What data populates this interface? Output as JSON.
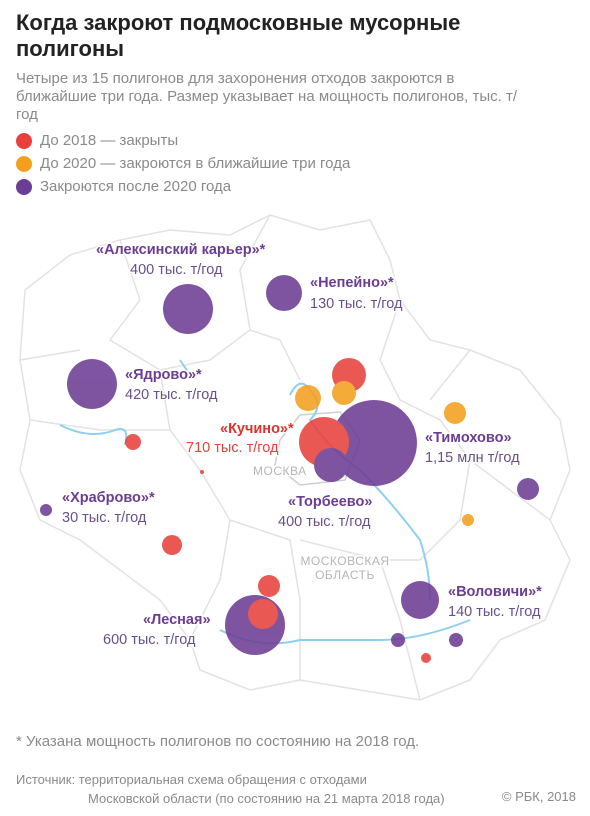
{
  "header": {
    "title": "Когда закроют подмосковные мусорные полигоны",
    "subtitle": "Четыре из 15 полигонов для захоронения отходов закроются в ближайшие три года. Размер указывает на мощность полигонов, тыс. т/год"
  },
  "legend": [
    {
      "label": "До 2018 — закрыты",
      "color": "#e8413c"
    },
    {
      "label": "До 2020 — закроются в ближайшие три года",
      "color": "#f4a01e"
    },
    {
      "label": "Закроются после 2020 года",
      "color": "#6d3d95"
    }
  ],
  "map": {
    "labels": [
      {
        "name": "«Алексинский карьер»*",
        "capacity": "400 тыс. т/год"
      },
      {
        "name": "«Непейно»*",
        "capacity": "130 тыс. т/год"
      },
      {
        "name": "«Ядрово»*",
        "capacity": "420 тыс. т/год"
      },
      {
        "name": "«Кучино»*",
        "capacity": "710 тыс. т/год"
      },
      {
        "name": "«Тимохово»",
        "capacity": "1,15 млн т/год"
      },
      {
        "name": "«Торбеево»",
        "capacity": "400 тыс. т/год"
      },
      {
        "name": "«Храброво»*",
        "capacity": "30 тыс. т/год"
      },
      {
        "name": "«Лесная»",
        "capacity": "600 тыс. т/год"
      },
      {
        "name": "«Воловичи»*",
        "capacity": "140 тыс. т/год"
      }
    ],
    "region_labels": [
      "МОСКВА",
      "МОСКОВСКАЯ",
      "ОБЛАСТЬ"
    ]
  },
  "footnote": "* Указана мощность полигонов по состоянию на 2018 год.",
  "source": [
    "Источник: территориальная схема обращения с отходами",
    "Московской области (по состоянию на 21 марта 2018 года)"
  ],
  "copyright": "© РБК, 2018"
}
